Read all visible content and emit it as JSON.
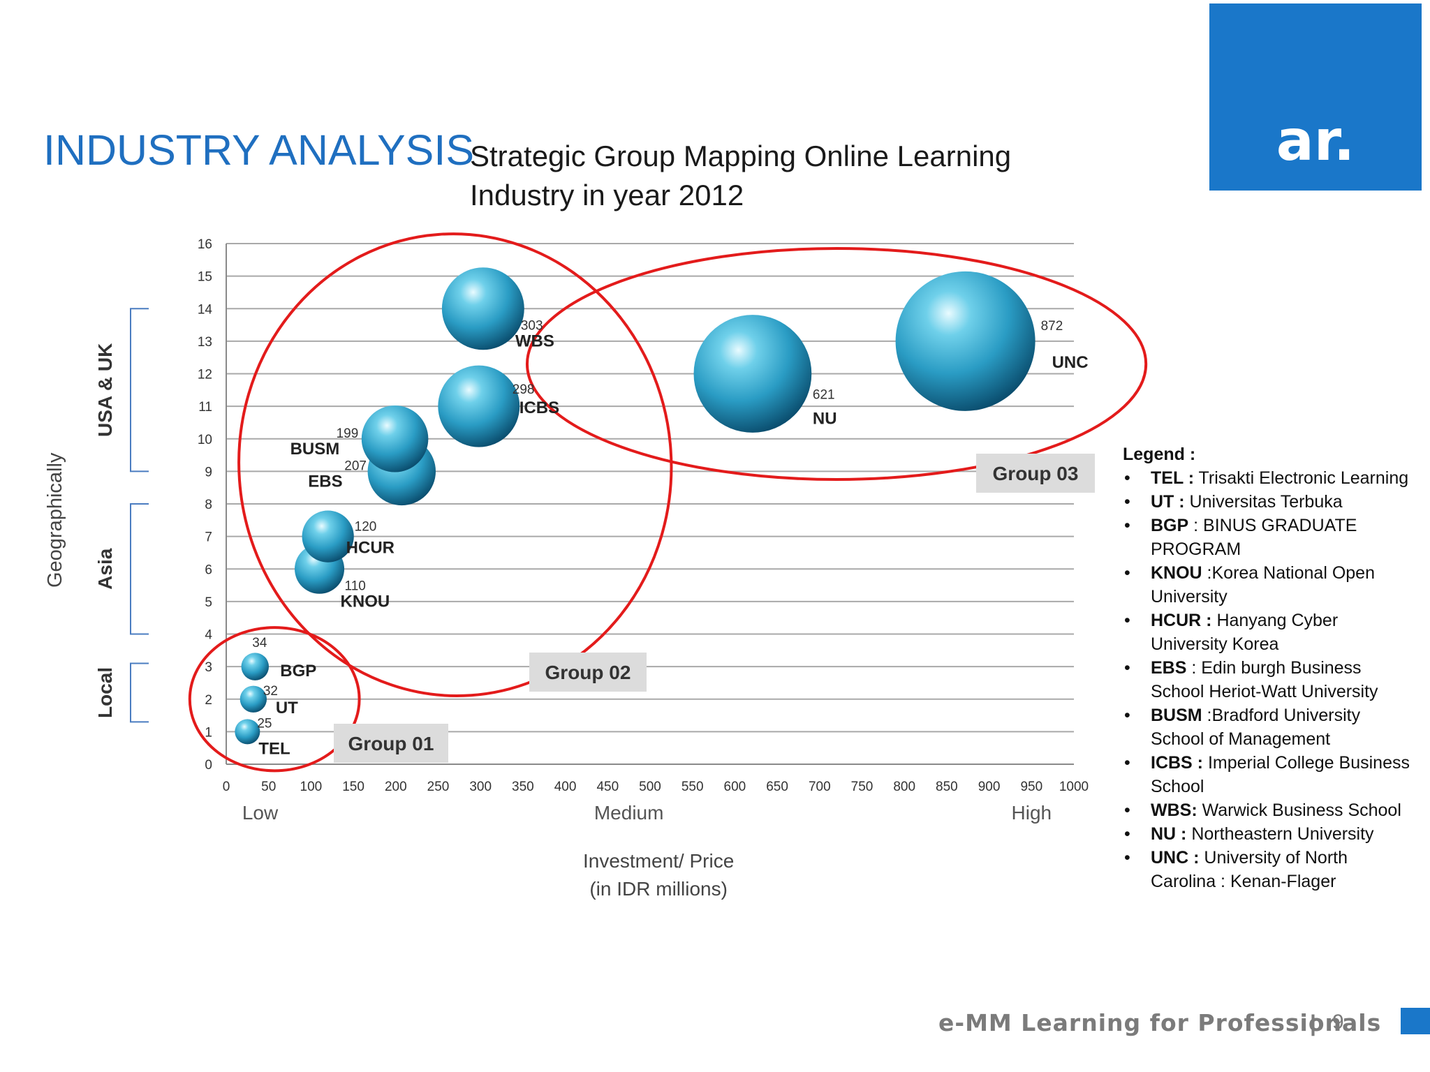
{
  "header": {
    "title": "INDUSTRY ANALYSIS",
    "subtitle_line1": "Strategic Group Mapping Online Learning",
    "subtitle_line2": "Industry in year 2012",
    "logo_text": "ar."
  },
  "colors": {
    "accent": "#1a77c9",
    "bubble": "#2a9cc4",
    "group_ring": "#e31b1b",
    "title": "#1f6fc0"
  },
  "chart_data": {
    "type": "scatter",
    "xlabel_line1": "Investment/ Price",
    "xlabel_line2": "(in IDR millions)",
    "ylabel": "Geographically",
    "xlim": [
      0,
      1000
    ],
    "ylim": [
      0,
      16
    ],
    "x_ticks": [
      "0",
      "50",
      "100",
      "150",
      "200",
      "250",
      "300",
      "350",
      "400",
      "450",
      "500",
      "550",
      "600",
      "650",
      "700",
      "750",
      "800",
      "850",
      "900",
      "950",
      "1000"
    ],
    "y_ticks": [
      "0",
      "1",
      "2",
      "3",
      "4",
      "5",
      "6",
      "7",
      "8",
      "9",
      "10",
      "11",
      "12",
      "13",
      "14",
      "15",
      "16"
    ],
    "x_categories": [
      {
        "label": "Low",
        "x": 40
      },
      {
        "label": "Medium",
        "x": 475
      },
      {
        "label": "High",
        "x": 950
      }
    ],
    "y_regions": [
      {
        "label": "Local",
        "from": 1.3,
        "to": 3.1
      },
      {
        "label": "Asia",
        "from": 4.0,
        "to": 8.0
      },
      {
        "label": "USA & UK",
        "from": 9.0,
        "to": 14.0
      }
    ],
    "points": [
      {
        "name": "TEL",
        "x": 25,
        "y": 1,
        "size": 25
      },
      {
        "name": "UT",
        "x": 32,
        "y": 2,
        "size": 32
      },
      {
        "name": "BGP",
        "x": 34,
        "y": 3,
        "size": 34
      },
      {
        "name": "KNOU",
        "x": 110,
        "y": 6,
        "size": 110
      },
      {
        "name": "HCUR",
        "x": 120,
        "y": 7,
        "size": 120
      },
      {
        "name": "EBS",
        "x": 207,
        "y": 9,
        "size": 207
      },
      {
        "name": "BUSM",
        "x": 199,
        "y": 10,
        "size": 199
      },
      {
        "name": "ICBS",
        "x": 298,
        "y": 11,
        "size": 298
      },
      {
        "name": "WBS",
        "x": 303,
        "y": 14,
        "size": 303
      },
      {
        "name": "NU",
        "x": 621,
        "y": 12,
        "size": 621
      },
      {
        "name": "UNC",
        "x": 872,
        "y": 13,
        "size": 872
      }
    ],
    "groups": [
      "Group 01",
      "Group 02",
      "Group 03"
    ],
    "grid": true
  },
  "legend": {
    "title": "Legend :",
    "items": [
      {
        "abbr": "TEL :",
        "text": " Trisakti Electronic Learning"
      },
      {
        "abbr": "UT :",
        "text": " Universitas Terbuka"
      },
      {
        "abbr": "BGP",
        "text": " : BINUS GRADUATE PROGRAM"
      },
      {
        "abbr": "KNOU",
        "text": " :Korea National Open University"
      },
      {
        "abbr": "HCUR :",
        "text": " Hanyang Cyber University Korea"
      },
      {
        "abbr": "EBS",
        "text": " : Edin burgh Business School Heriot-Watt University"
      },
      {
        "abbr": "BUSM",
        "text": " :Bradford University School of Management"
      },
      {
        "abbr": "ICBS :",
        "text": " Imperial College Business School"
      },
      {
        "abbr": "WBS:",
        "text": " Warwick Business School"
      },
      {
        "abbr": "NU :",
        "text": " Northeastern University"
      },
      {
        "abbr": "UNC :",
        "text": " University of North Carolina : Kenan-Flager"
      }
    ]
  },
  "footer": {
    "text": "e-MM Learning for Professionals",
    "separator": "|",
    "page": "9"
  }
}
